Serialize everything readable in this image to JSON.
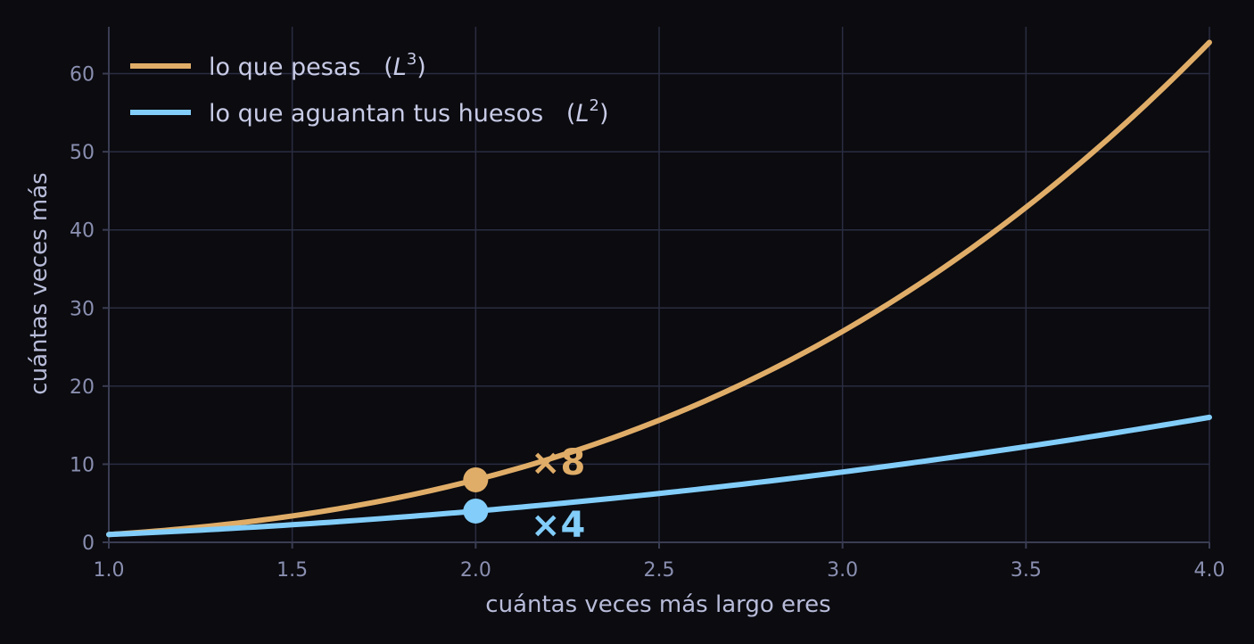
{
  "chart_data": {
    "type": "line",
    "xlabel": "cuántas veces más largo eres",
    "ylabel": "cuántas veces más",
    "xlim": [
      1.0,
      4.0
    ],
    "ylim": [
      0,
      66
    ],
    "x_ticks": [
      1.0,
      1.5,
      2.0,
      2.5,
      3.0,
      3.5,
      4.0
    ],
    "x_tick_labels": [
      "1.0",
      "1.5",
      "2.0",
      "2.5",
      "3.0",
      "3.5",
      "4.0"
    ],
    "y_ticks": [
      0,
      10,
      20,
      30,
      40,
      50,
      60
    ],
    "y_tick_labels": [
      "0",
      "10",
      "20",
      "30",
      "40",
      "50",
      "60"
    ],
    "grid": true,
    "legend_position": "top-left",
    "series": [
      {
        "name": "lo que pesas",
        "name_suffix_base": "L",
        "name_suffix_exp": "3",
        "exponent": 3,
        "color": "#e0ad68",
        "x": [
          1.0,
          1.25,
          1.5,
          1.75,
          2.0,
          2.25,
          2.5,
          2.75,
          3.0,
          3.25,
          3.5,
          3.75,
          4.0
        ],
        "y": [
          1.0,
          1.95,
          3.38,
          5.36,
          8.0,
          11.39,
          15.63,
          20.8,
          27.0,
          34.33,
          42.88,
          52.73,
          64.0
        ]
      },
      {
        "name": "lo que aguantan tus huesos",
        "name_suffix_base": "L",
        "name_suffix_exp": "2",
        "exponent": 2,
        "color": "#82cdf9",
        "x": [
          1.0,
          1.25,
          1.5,
          1.75,
          2.0,
          2.25,
          2.5,
          2.75,
          3.0,
          3.25,
          3.5,
          3.75,
          4.0
        ],
        "y": [
          1.0,
          1.56,
          2.25,
          3.06,
          4.0,
          5.06,
          6.25,
          7.56,
          9.0,
          10.56,
          12.25,
          14.06,
          16.0
        ]
      }
    ],
    "markers": [
      {
        "x": 2.0,
        "y": 8.0,
        "color": "#e0ad68"
      },
      {
        "x": 2.0,
        "y": 4.0,
        "color": "#82cdf9"
      }
    ],
    "annotations": [
      {
        "text": "×8",
        "x": 2.15,
        "y": 10.3,
        "color": "#e0ad68"
      },
      {
        "text": "×4",
        "x": 2.15,
        "y": 2.3,
        "color": "#82cdf9"
      }
    ]
  }
}
